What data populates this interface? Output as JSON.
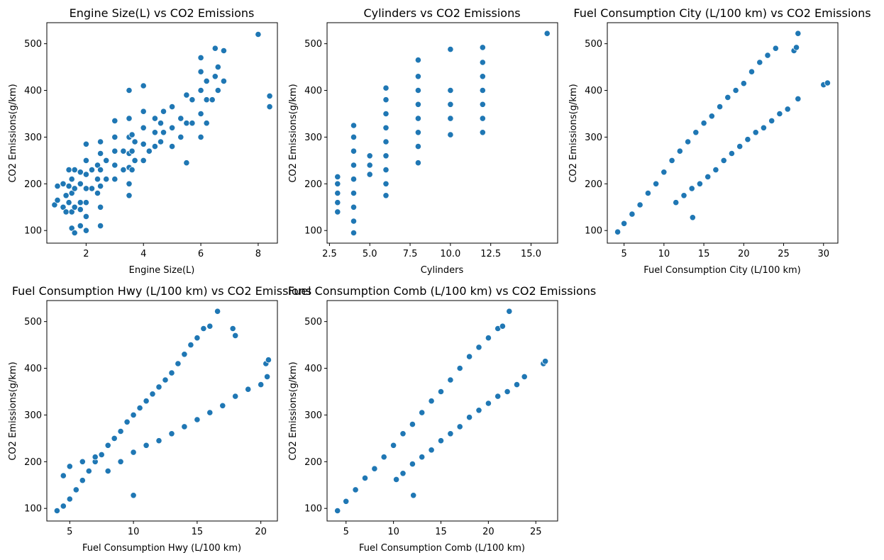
{
  "colors": {
    "marker": "#1f77b4",
    "marker_edge": "#ffffff",
    "background": "#ffffff"
  },
  "chart_data": [
    {
      "type": "scatter",
      "title": "Engine Size(L) vs CO2 Emissions",
      "xlabel": "Engine Size(L)",
      "ylabel": "CO2 Emissions(g/km)",
      "xlim": [
        0.63,
        8.67
      ],
      "ylim": [
        73,
        545
      ],
      "xticks": [
        2,
        4,
        6,
        8
      ],
      "yticks": [
        100,
        200,
        300,
        400,
        500
      ],
      "xtick_labels": [
        "2",
        "4",
        "6",
        "8"
      ],
      "ytick_labels": [
        "100",
        "200",
        "300",
        "400",
        "500"
      ],
      "grid": false,
      "points": [
        [
          0.9,
          155
        ],
        [
          1.0,
          165
        ],
        [
          1.0,
          195
        ],
        [
          1.2,
          150
        ],
        [
          1.2,
          200
        ],
        [
          1.3,
          140
        ],
        [
          1.3,
          175
        ],
        [
          1.4,
          160
        ],
        [
          1.4,
          195
        ],
        [
          1.4,
          230
        ],
        [
          1.5,
          105
        ],
        [
          1.5,
          140
        ],
        [
          1.5,
          180
        ],
        [
          1.5,
          210
        ],
        [
          1.6,
          95
        ],
        [
          1.6,
          150
        ],
        [
          1.6,
          190
        ],
        [
          1.6,
          230
        ],
        [
          1.8,
          110
        ],
        [
          1.8,
          160
        ],
        [
          1.8,
          200
        ],
        [
          1.8,
          225
        ],
        [
          1.8,
          145
        ],
        [
          2.0,
          100
        ],
        [
          2.0,
          130
        ],
        [
          2.0,
          160
        ],
        [
          2.0,
          190
        ],
        [
          2.0,
          220
        ],
        [
          2.0,
          250
        ],
        [
          2.0,
          285
        ],
        [
          2.2,
          190
        ],
        [
          2.2,
          230
        ],
        [
          2.4,
          180
        ],
        [
          2.4,
          210
        ],
        [
          2.4,
          240
        ],
        [
          2.5,
          110
        ],
        [
          2.5,
          150
        ],
        [
          2.5,
          195
        ],
        [
          2.5,
          230
        ],
        [
          2.5,
          265
        ],
        [
          2.5,
          290
        ],
        [
          2.7,
          210
        ],
        [
          2.7,
          250
        ],
        [
          3.0,
          210
        ],
        [
          3.0,
          240
        ],
        [
          3.0,
          270
        ],
        [
          3.0,
          300
        ],
        [
          3.0,
          335
        ],
        [
          3.3,
          230
        ],
        [
          3.3,
          270
        ],
        [
          3.5,
          175
        ],
        [
          3.5,
          200
        ],
        [
          3.5,
          235
        ],
        [
          3.5,
          265
        ],
        [
          3.5,
          300
        ],
        [
          3.5,
          340
        ],
        [
          3.5,
          400
        ],
        [
          3.6,
          230
        ],
        [
          3.6,
          270
        ],
        [
          3.6,
          305
        ],
        [
          3.7,
          250
        ],
        [
          3.7,
          290
        ],
        [
          4.0,
          250
        ],
        [
          4.0,
          285
        ],
        [
          4.0,
          320
        ],
        [
          4.0,
          355
        ],
        [
          4.0,
          410
        ],
        [
          4.2,
          270
        ],
        [
          4.4,
          280
        ],
        [
          4.4,
          310
        ],
        [
          4.4,
          340
        ],
        [
          4.6,
          290
        ],
        [
          4.6,
          330
        ],
        [
          4.7,
          310
        ],
        [
          4.7,
          355
        ],
        [
          5.0,
          280
        ],
        [
          5.0,
          320
        ],
        [
          5.0,
          365
        ],
        [
          5.3,
          300
        ],
        [
          5.3,
          340
        ],
        [
          5.5,
          245
        ],
        [
          5.5,
          330
        ],
        [
          5.5,
          390
        ],
        [
          5.7,
          330
        ],
        [
          5.7,
          380
        ],
        [
          6.0,
          300
        ],
        [
          6.0,
          350
        ],
        [
          6.0,
          400
        ],
        [
          6.0,
          440
        ],
        [
          6.0,
          470
        ],
        [
          6.2,
          330
        ],
        [
          6.2,
          380
        ],
        [
          6.2,
          420
        ],
        [
          6.4,
          380
        ],
        [
          6.5,
          430
        ],
        [
          6.5,
          490
        ],
        [
          6.6,
          400
        ],
        [
          6.6,
          450
        ],
        [
          6.8,
          420
        ],
        [
          6.8,
          485
        ],
        [
          8.0,
          520
        ],
        [
          8.4,
          365
        ],
        [
          8.4,
          388
        ]
      ]
    },
    {
      "type": "scatter",
      "title": "Cylinders vs CO2 Emissions",
      "xlabel": "Cylinders",
      "ylabel": "CO2 Emissions(g/km)",
      "xlim": [
        2.35,
        16.65
      ],
      "ylim": [
        73,
        545
      ],
      "xticks": [
        2.5,
        5.0,
        7.5,
        10.0,
        12.5,
        15.0
      ],
      "yticks": [
        100,
        200,
        300,
        400,
        500
      ],
      "xtick_labels": [
        "2.5",
        "5.0",
        "7.5",
        "10.0",
        "12.5",
        "15.0"
      ],
      "ytick_labels": [
        "100",
        "200",
        "300",
        "400",
        "500"
      ],
      "grid": false,
      "points": [
        [
          3,
          140
        ],
        [
          3,
          160
        ],
        [
          3,
          180
        ],
        [
          3,
          200
        ],
        [
          3,
          215
        ],
        [
          4,
          95
        ],
        [
          4,
          120
        ],
        [
          4,
          150
        ],
        [
          4,
          180
        ],
        [
          4,
          210
        ],
        [
          4,
          240
        ],
        [
          4,
          270
        ],
        [
          4,
          300
        ],
        [
          4,
          325
        ],
        [
          5,
          220
        ],
        [
          5,
          240
        ],
        [
          5,
          260
        ],
        [
          6,
          175
        ],
        [
          6,
          200
        ],
        [
          6,
          230
        ],
        [
          6,
          260
        ],
        [
          6,
          290
        ],
        [
          6,
          320
        ],
        [
          6,
          350
        ],
        [
          6,
          380
        ],
        [
          6,
          405
        ],
        [
          8,
          245
        ],
        [
          8,
          280
        ],
        [
          8,
          310
        ],
        [
          8,
          340
        ],
        [
          8,
          370
        ],
        [
          8,
          400
        ],
        [
          8,
          430
        ],
        [
          8,
          465
        ],
        [
          10,
          305
        ],
        [
          10,
          340
        ],
        [
          10,
          370
        ],
        [
          10,
          400
        ],
        [
          10,
          488
        ],
        [
          12,
          310
        ],
        [
          12,
          340
        ],
        [
          12,
          370
        ],
        [
          12,
          400
        ],
        [
          12,
          430
        ],
        [
          12,
          460
        ],
        [
          12,
          492
        ],
        [
          16,
          522
        ]
      ]
    },
    {
      "type": "scatter",
      "title": "Fuel Consumption City (L/100 km) vs CO2 Emissions",
      "xlabel": "Fuel Consumption City (L/100 km)",
      "ylabel": "CO2 Emissions(g/km)",
      "xlim": [
        2.9,
        31.8
      ],
      "ylim": [
        73,
        545
      ],
      "xticks": [
        5,
        10,
        15,
        20,
        25,
        30
      ],
      "yticks": [
        100,
        200,
        300,
        400,
        500
      ],
      "xtick_labels": [
        "5",
        "10",
        "15",
        "20",
        "25",
        "30"
      ],
      "ytick_labels": [
        "100",
        "200",
        "300",
        "400",
        "500"
      ],
      "grid": false,
      "points": [
        [
          4.2,
          97
        ],
        [
          5.0,
          115
        ],
        [
          6.0,
          135
        ],
        [
          7.0,
          155
        ],
        [
          8.0,
          180
        ],
        [
          9.0,
          200
        ],
        [
          10.0,
          225
        ],
        [
          11.0,
          250
        ],
        [
          12.0,
          270
        ],
        [
          13.0,
          290
        ],
        [
          14.0,
          310
        ],
        [
          15.0,
          330
        ],
        [
          16.0,
          345
        ],
        [
          17.0,
          365
        ],
        [
          18.0,
          385
        ],
        [
          19.0,
          400
        ],
        [
          20.0,
          415
        ],
        [
          21.0,
          440
        ],
        [
          22.0,
          460
        ],
        [
          23.0,
          475
        ],
        [
          24.0,
          490
        ],
        [
          26.3,
          485
        ],
        [
          26.6,
          492
        ],
        [
          26.8,
          522
        ],
        [
          11.5,
          160
        ],
        [
          12.5,
          175
        ],
        [
          13.5,
          190
        ],
        [
          14.5,
          200
        ],
        [
          15.5,
          215
        ],
        [
          16.5,
          230
        ],
        [
          17.5,
          250
        ],
        [
          18.5,
          265
        ],
        [
          19.5,
          280
        ],
        [
          20.5,
          295
        ],
        [
          21.5,
          310
        ],
        [
          22.5,
          320
        ],
        [
          23.5,
          335
        ],
        [
          24.5,
          350
        ],
        [
          25.5,
          360
        ],
        [
          26.8,
          382
        ],
        [
          30.0,
          412
        ],
        [
          30.5,
          416
        ],
        [
          13.6,
          128
        ]
      ]
    },
    {
      "type": "scatter",
      "title": "Fuel Consumption Hwy (L/100 km) vs CO2 Emissions",
      "xlabel": "Fuel Consumption Hwy (L/100 km)",
      "ylabel": "CO2 Emissions(g/km)",
      "xlim": [
        3.2,
        21.3
      ],
      "ylim": [
        73,
        545
      ],
      "xticks": [
        5,
        10,
        15,
        20
      ],
      "yticks": [
        100,
        200,
        300,
        400,
        500
      ],
      "xtick_labels": [
        "5",
        "10",
        "15",
        "20"
      ],
      "ytick_labels": [
        "100",
        "200",
        "300",
        "400",
        "500"
      ],
      "grid": false,
      "points": [
        [
          4.0,
          95
        ],
        [
          4.5,
          105
        ],
        [
          5.0,
          120
        ],
        [
          5.5,
          140
        ],
        [
          6.0,
          160
        ],
        [
          6.5,
          180
        ],
        [
          7.0,
          200
        ],
        [
          7.5,
          215
        ],
        [
          8.0,
          235
        ],
        [
          8.5,
          250
        ],
        [
          9.0,
          265
        ],
        [
          9.5,
          285
        ],
        [
          10.0,
          300
        ],
        [
          10.5,
          315
        ],
        [
          11.0,
          330
        ],
        [
          11.5,
          345
        ],
        [
          12.0,
          360
        ],
        [
          12.5,
          375
        ],
        [
          13.0,
          390
        ],
        [
          13.5,
          410
        ],
        [
          14.0,
          430
        ],
        [
          14.5,
          450
        ],
        [
          15.0,
          465
        ],
        [
          15.5,
          485
        ],
        [
          16.0,
          490
        ],
        [
          16.6,
          522
        ],
        [
          17.8,
          485
        ],
        [
          18.0,
          470
        ],
        [
          4.5,
          170
        ],
        [
          5.0,
          190
        ],
        [
          6.0,
          200
        ],
        [
          7.0,
          210
        ],
        [
          8.0,
          180
        ],
        [
          9.0,
          200
        ],
        [
          10.0,
          220
        ],
        [
          11.0,
          235
        ],
        [
          12.0,
          245
        ],
        [
          13.0,
          260
        ],
        [
          14.0,
          275
        ],
        [
          15.0,
          290
        ],
        [
          16.0,
          305
        ],
        [
          17.0,
          320
        ],
        [
          18.0,
          340
        ],
        [
          19.0,
          355
        ],
        [
          20.0,
          365
        ],
        [
          20.5,
          382
        ],
        [
          20.4,
          410
        ],
        [
          20.6,
          418
        ],
        [
          10.0,
          128
        ]
      ]
    },
    {
      "type": "scatter",
      "title": "Fuel Consumption Comb (L/100 km) vs CO2 Emissions",
      "xlabel": "Fuel Consumption Comb (L/100 km)",
      "ylabel": "CO2 Emissions(g/km)",
      "xlim": [
        3.0,
        27.3
      ],
      "ylim": [
        73,
        545
      ],
      "xticks": [
        5,
        10,
        15,
        20,
        25
      ],
      "yticks": [
        100,
        200,
        300,
        400,
        500
      ],
      "xtick_labels": [
        "5",
        "10",
        "15",
        "20",
        "25"
      ],
      "ytick_labels": [
        "100",
        "200",
        "300",
        "400",
        "500"
      ],
      "grid": false,
      "points": [
        [
          4.1,
          95
        ],
        [
          5.0,
          115
        ],
        [
          6.0,
          140
        ],
        [
          7.0,
          165
        ],
        [
          8.0,
          185
        ],
        [
          9.0,
          210
        ],
        [
          10.0,
          235
        ],
        [
          11.0,
          260
        ],
        [
          12.0,
          280
        ],
        [
          13.0,
          305
        ],
        [
          14.0,
          330
        ],
        [
          15.0,
          350
        ],
        [
          16.0,
          375
        ],
        [
          17.0,
          400
        ],
        [
          18.0,
          425
        ],
        [
          19.0,
          445
        ],
        [
          20.0,
          465
        ],
        [
          21.0,
          485
        ],
        [
          21.5,
          490
        ],
        [
          22.2,
          522
        ],
        [
          10.3,
          162
        ],
        [
          11.0,
          175
        ],
        [
          12.0,
          195
        ],
        [
          13.0,
          210
        ],
        [
          14.0,
          225
        ],
        [
          15.0,
          245
        ],
        [
          16.0,
          260
        ],
        [
          17.0,
          275
        ],
        [
          18.0,
          295
        ],
        [
          19.0,
          310
        ],
        [
          20.0,
          325
        ],
        [
          21.0,
          340
        ],
        [
          22.0,
          350
        ],
        [
          23.0,
          365
        ],
        [
          23.8,
          382
        ],
        [
          25.8,
          410
        ],
        [
          26.0,
          415
        ],
        [
          12.1,
          128
        ]
      ]
    }
  ]
}
